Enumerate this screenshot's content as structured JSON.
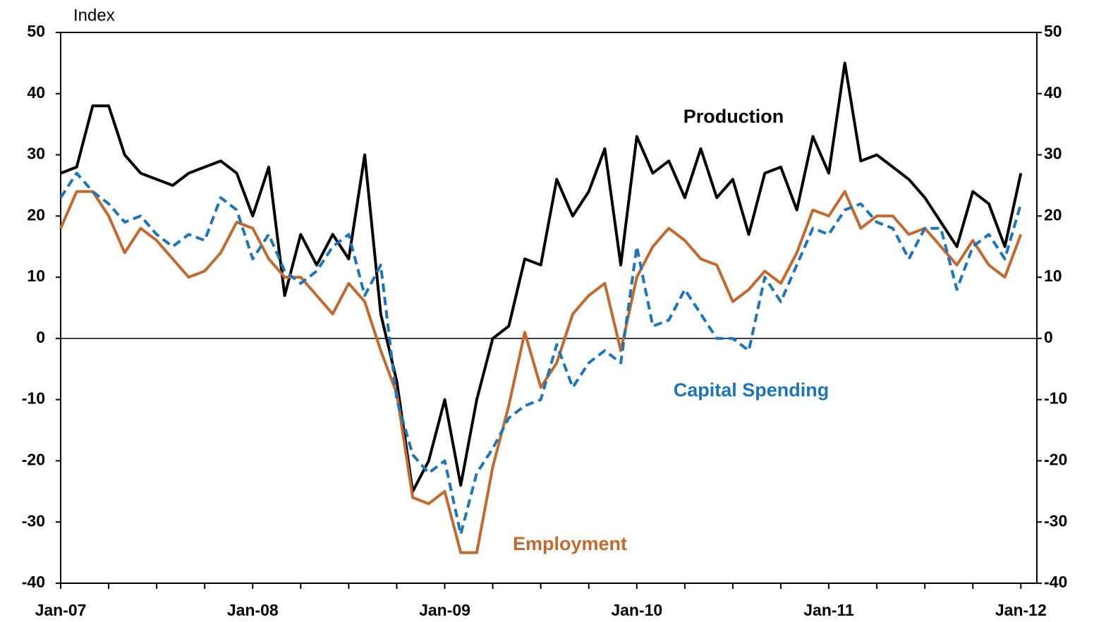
{
  "chart_data": {
    "type": "line",
    "y_label": "Index",
    "categories": [
      "Jan-07",
      null,
      null,
      null,
      null,
      null,
      null,
      null,
      null,
      null,
      null,
      null,
      "Jan-08",
      null,
      null,
      null,
      null,
      null,
      null,
      null,
      null,
      null,
      null,
      null,
      "Jan-09",
      null,
      null,
      null,
      null,
      null,
      null,
      null,
      null,
      null,
      null,
      null,
      "Jan-10",
      null,
      null,
      null,
      null,
      null,
      null,
      null,
      null,
      null,
      null,
      null,
      "Jan-11",
      null,
      null,
      null,
      null,
      null,
      null,
      null,
      null,
      null,
      null,
      null,
      "Jan-12"
    ],
    "series": [
      {
        "name": "Production",
        "color": "#000000",
        "dash": false,
        "values": [
          27,
          28,
          38,
          38,
          30,
          27,
          26,
          25,
          27,
          28,
          29,
          27,
          20,
          28,
          7,
          17,
          12,
          17,
          13,
          30,
          4,
          -7,
          -25,
          -20,
          -10,
          -24,
          -10,
          0,
          2,
          13,
          12,
          26,
          20,
          24,
          31,
          12,
          33,
          27,
          29,
          23,
          31,
          23,
          26,
          17,
          27,
          28,
          21,
          33,
          27,
          45,
          29,
          30,
          28,
          26,
          23,
          19,
          15,
          24,
          22,
          15,
          27
        ]
      },
      {
        "name": "Employment",
        "color": "#c4692e",
        "dash": false,
        "values": [
          18,
          24,
          24,
          20,
          14,
          18,
          16,
          13,
          10,
          11,
          14,
          19,
          18,
          13,
          10,
          10,
          7,
          4,
          9,
          6,
          -2,
          -9,
          -26,
          -27,
          -25,
          -35,
          -35,
          -21,
          -11,
          1,
          -8,
          -4,
          4,
          7,
          9,
          -2,
          10,
          15,
          18,
          16,
          13,
          12,
          6,
          8,
          11,
          9,
          14,
          21,
          20,
          24,
          18,
          20,
          20,
          17,
          18,
          15,
          12,
          16,
          12,
          10,
          17
        ]
      },
      {
        "name": "Capital Spending",
        "color": "#1c75bc",
        "dash": true,
        "values": [
          23,
          27,
          24,
          22,
          19,
          20,
          17,
          15,
          17,
          16,
          23,
          21,
          13,
          17,
          11,
          9,
          11,
          15,
          17,
          7,
          12,
          -10,
          -19,
          -22,
          -20,
          -32,
          -22,
          -18,
          -13,
          -11,
          -10,
          -1,
          -8,
          -4,
          -2,
          -4,
          15,
          2,
          3,
          8,
          4,
          0,
          0,
          -2,
          10,
          6,
          12,
          18,
          17,
          21,
          22,
          19,
          18,
          13,
          18,
          18,
          8,
          15,
          17,
          13,
          22
        ]
      }
    ],
    "ylim": [
      -40,
      50
    ],
    "yticks": [
      -40,
      -30,
      -20,
      -10,
      0,
      10,
      20,
      30,
      40,
      50
    ],
    "y2lim": [
      -40,
      50
    ],
    "y2ticks": [
      -40,
      -30,
      -20,
      -10,
      0,
      10,
      20,
      30,
      40,
      50
    ],
    "zero_line": true
  }
}
